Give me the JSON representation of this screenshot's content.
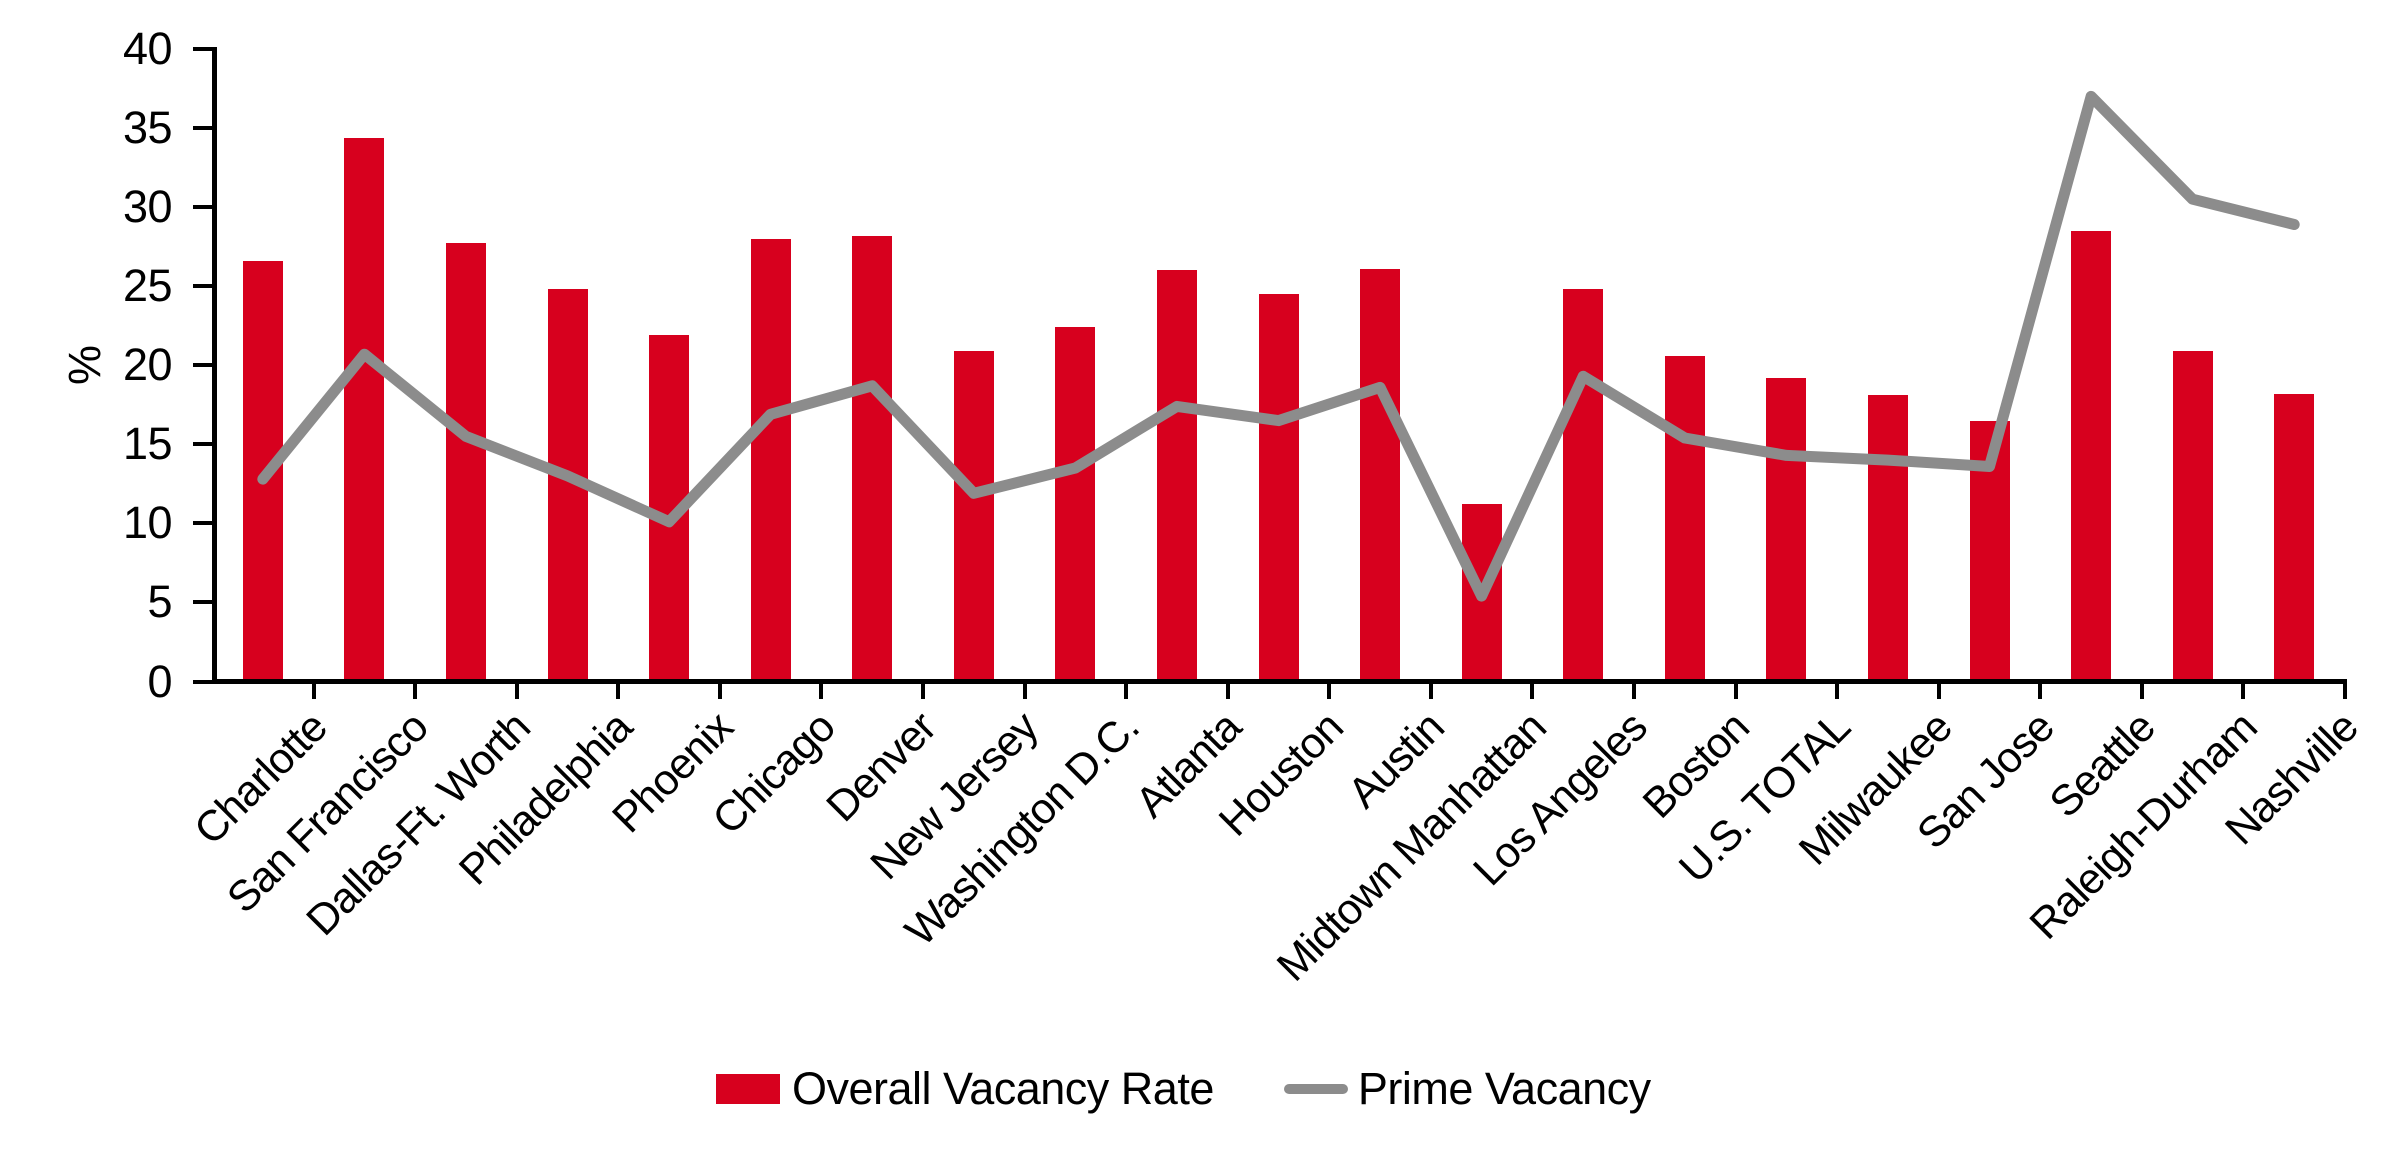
{
  "chart_data": {
    "type": "bar",
    "subtype": "bar-line-combo",
    "title": "",
    "xlabel": "",
    "ylabel": "%",
    "ylim": [
      0,
      40
    ],
    "yticks": [
      0,
      5,
      10,
      15,
      20,
      25,
      30,
      35,
      40
    ],
    "grid": false,
    "legend_position": "bottom",
    "categories": [
      "Charlotte",
      "San Francisco",
      "Dallas-Ft. Worth",
      "Philadelphia",
      "Phoenix",
      "Chicago",
      "Denver",
      "New Jersey",
      "Washington D.C.",
      "Atlanta",
      "Houston",
      "Austin",
      "Midtown Manhattan",
      "Los Angeles",
      "Boston",
      "U.S. TOTAL",
      "Milwaukee",
      "San Jose",
      "Seattle",
      "Raleigh-Durham",
      "Nashville"
    ],
    "series": [
      {
        "name": "Overall Vacancy Rate",
        "type": "bar",
        "color": "#D7001E",
        "values": [
          26.6,
          34.4,
          27.7,
          24.8,
          21.9,
          28.0,
          28.2,
          20.9,
          22.4,
          26.0,
          24.5,
          26.1,
          11.2,
          24.8,
          20.6,
          19.2,
          18.1,
          16.5,
          28.5,
          20.9,
          18.2
        ]
      },
      {
        "name": "Prime Vacancy",
        "type": "line",
        "color": "#8C8C8C",
        "values": [
          12.8,
          20.7,
          15.5,
          13.0,
          10.1,
          16.9,
          18.7,
          11.9,
          13.5,
          17.4,
          16.5,
          18.6,
          5.4,
          19.3,
          15.4,
          14.3,
          14.0,
          13.6,
          37.0,
          30.5,
          28.9
        ]
      }
    ]
  },
  "colors": {
    "bar": "#D7001E",
    "line": "#8C8C8C",
    "axis": "#000000",
    "text": "#000000",
    "background": "#FFFFFF"
  }
}
